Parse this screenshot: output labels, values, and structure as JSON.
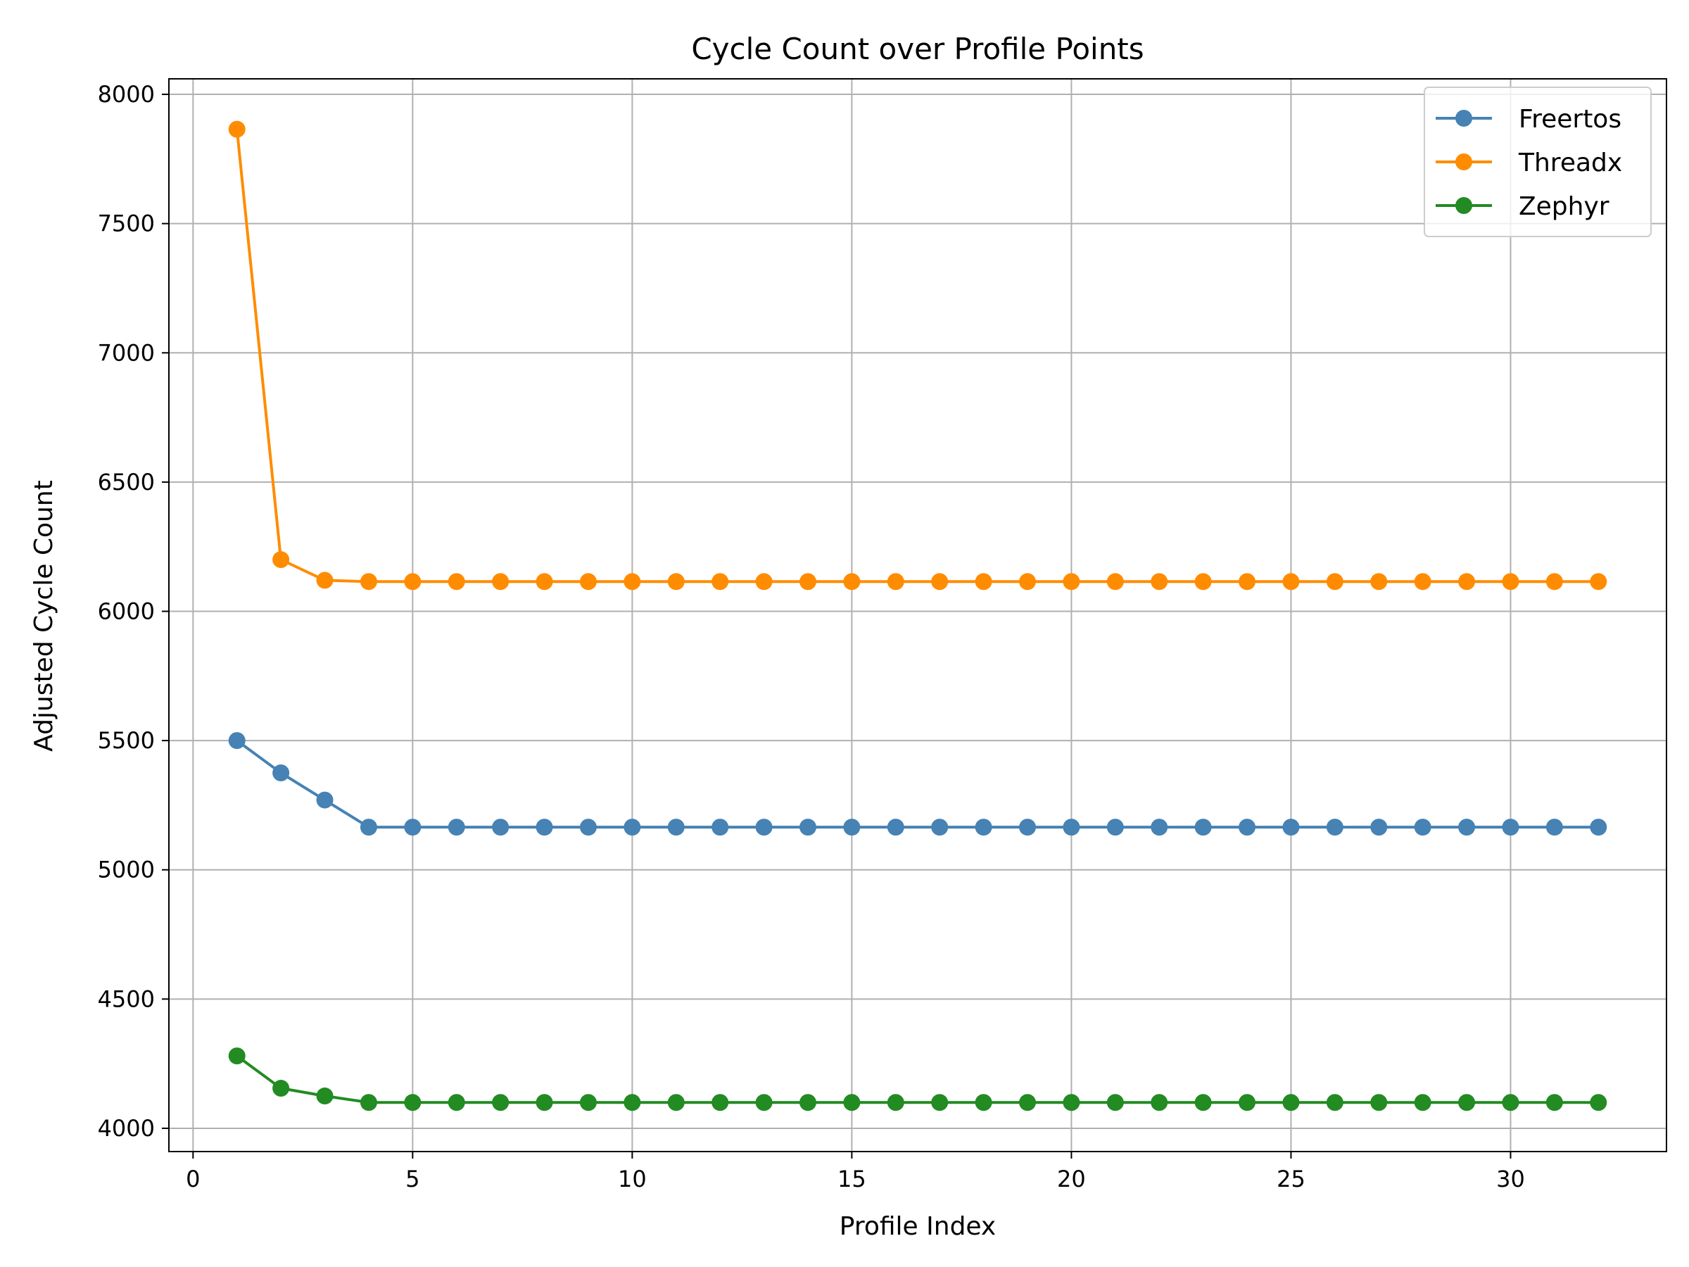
{
  "chart_data": {
    "type": "line",
    "title": "Cycle Count over Profile Points",
    "xlabel": "Profile Index",
    "ylabel": "Adjusted Cycle Count",
    "xlim": [
      -0.55,
      33.55
    ],
    "ylim": [
      3910,
      8060
    ],
    "xticks": [
      0,
      5,
      10,
      15,
      20,
      25,
      30
    ],
    "yticks": [
      4000,
      4500,
      5000,
      5500,
      6000,
      6500,
      7000,
      7500,
      8000
    ],
    "grid": true,
    "legend_position": "top-right",
    "x": [
      1,
      2,
      3,
      4,
      5,
      6,
      7,
      8,
      9,
      10,
      11,
      12,
      13,
      14,
      15,
      16,
      17,
      18,
      19,
      20,
      21,
      22,
      23,
      24,
      25,
      26,
      27,
      28,
      29,
      30,
      31,
      32
    ],
    "series": [
      {
        "name": "Freertos",
        "color": "#4682b4",
        "values": [
          5500,
          5375,
          5270,
          5165,
          5165,
          5165,
          5165,
          5165,
          5165,
          5165,
          5165,
          5165,
          5165,
          5165,
          5165,
          5165,
          5165,
          5165,
          5165,
          5165,
          5165,
          5165,
          5165,
          5165,
          5165,
          5165,
          5165,
          5165,
          5165,
          5165,
          5165,
          5165
        ]
      },
      {
        "name": "Threadx",
        "color": "#ff8c00",
        "values": [
          7865,
          6200,
          6120,
          6115,
          6115,
          6115,
          6115,
          6115,
          6115,
          6115,
          6115,
          6115,
          6115,
          6115,
          6115,
          6115,
          6115,
          6115,
          6115,
          6115,
          6115,
          6115,
          6115,
          6115,
          6115,
          6115,
          6115,
          6115,
          6115,
          6115,
          6115,
          6115
        ]
      },
      {
        "name": "Zephyr",
        "color": "#228b22",
        "values": [
          4280,
          4155,
          4125,
          4100,
          4100,
          4100,
          4100,
          4100,
          4100,
          4100,
          4100,
          4100,
          4100,
          4100,
          4100,
          4100,
          4100,
          4100,
          4100,
          4100,
          4100,
          4100,
          4100,
          4100,
          4100,
          4100,
          4100,
          4100,
          4100,
          4100,
          4100,
          4100
        ]
      }
    ]
  }
}
